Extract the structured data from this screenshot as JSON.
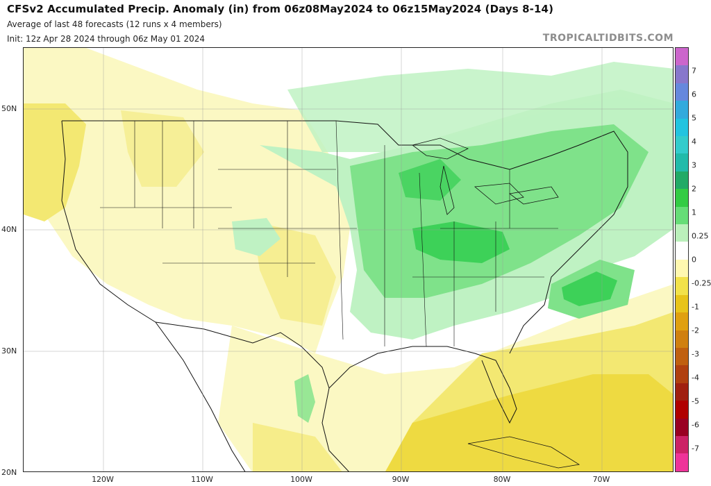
{
  "header": {
    "title": "CFSv2 Accumulated Precip. Anomaly (in) from 06z08May2024 to 06z15May2024 (Days 8-14)",
    "subtitle": "Average of last 48 forecasts (12 runs x 4 members)",
    "init": "Init: 12z Apr 28 2024 through 06z May 01 2024",
    "credit": "TROPICALTIDBITS.COM"
  },
  "axes": {
    "lat_labels": [
      "50N",
      "40N",
      "30N",
      "20N"
    ],
    "lon_labels": [
      "120W",
      "110W",
      "100W",
      "90W",
      "80W",
      "70W"
    ]
  },
  "colorbar": {
    "labels": [
      "7",
      "6",
      "5",
      "4",
      "3",
      "2",
      "1",
      "0.25",
      "0",
      "-0.25",
      "-1",
      "-2",
      "-3",
      "-4",
      "-5",
      "-6",
      "-7"
    ],
    "colors": [
      "#cc66cc",
      "#8877cc",
      "#6688dd",
      "#33aadd",
      "#22c4e0",
      "#33cccc",
      "#22bbaa",
      "#22aa66",
      "#33cc44",
      "#66dd77",
      "#bbf0bb",
      "#ffffff",
      "#fff8b0",
      "#f2e24a",
      "#e8c41a",
      "#e0a010",
      "#d08010",
      "#c06010",
      "#b04010",
      "#a02010",
      "#b00000",
      "#990022",
      "#cc2266",
      "#ee3399"
    ]
  },
  "map": {
    "colors": {
      "dry_light": "#fbf8c3",
      "dry_mid": "#f3e872",
      "dry_strong": "#ecd532",
      "wet_light": "#bff2c3",
      "wet_mid": "#7fe28a",
      "wet_strong": "#3dd158",
      "land_line": "#111111"
    }
  }
}
